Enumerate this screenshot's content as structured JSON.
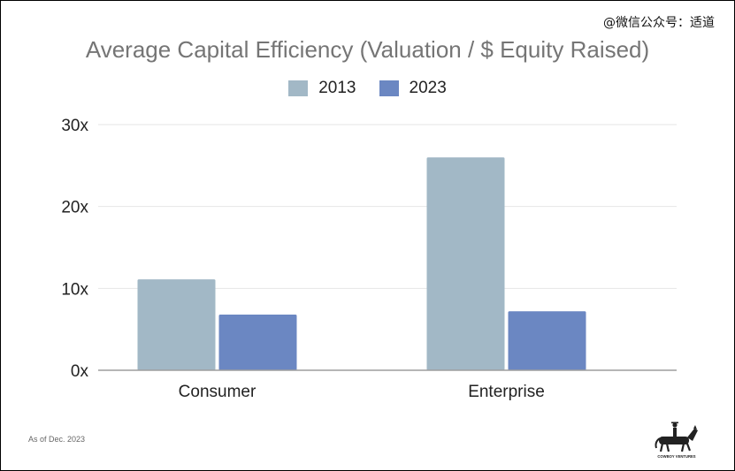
{
  "watermark": "@微信公众号：适道",
  "footnote": "As of Dec. 2023",
  "logo": {
    "text": "COWBOY VENTURES",
    "icon": "horse-rider-icon"
  },
  "colors": {
    "series_2013": "#a2b8c6",
    "series_2023": "#6b87c2",
    "gridline": "#e6e6e6",
    "axis": "#9e9e9e",
    "title": "#757575"
  },
  "chart_data": {
    "type": "bar",
    "title": "Average Capital Efficiency (Valuation / $ Equity Raised)",
    "xlabel": "",
    "ylabel": "",
    "categories": [
      "Consumer",
      "Enterprise"
    ],
    "series": [
      {
        "name": "2013",
        "values": [
          11.1,
          26.0
        ]
      },
      {
        "name": "2023",
        "values": [
          6.8,
          7.2
        ]
      }
    ],
    "ylim": [
      0,
      30
    ],
    "yticks": [
      0,
      10,
      20,
      30
    ],
    "ytick_labels": [
      "0x",
      "10x",
      "20x",
      "30x"
    ],
    "grid": true,
    "legend": "top-center"
  }
}
